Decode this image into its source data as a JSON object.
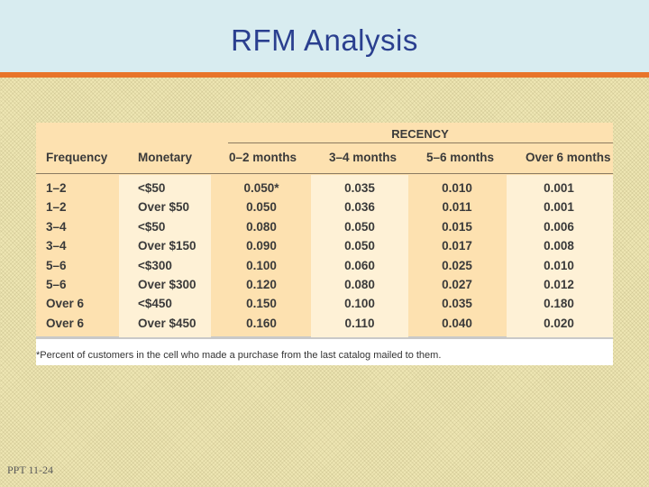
{
  "slide": {
    "title": "RFM Analysis",
    "page_number": "PPT 11-24"
  },
  "table": {
    "group_header": "RECENCY",
    "columns": [
      "Frequency",
      "Monetary",
      "0–2 months",
      "3–4 months",
      "5–6 months",
      "Over 6 months"
    ],
    "rows": [
      [
        "1–2",
        "<$50",
        "0.050*",
        "0.035",
        "0.010",
        "0.001"
      ],
      [
        "1–2",
        "Over $50",
        "0.050",
        "0.036",
        "0.011",
        "0.001"
      ],
      [
        "3–4",
        "<$50",
        "0.080",
        "0.050",
        "0.015",
        "0.006"
      ],
      [
        "3–4",
        "Over $150",
        "0.090",
        "0.050",
        "0.017",
        "0.008"
      ],
      [
        "5–6",
        "<$300",
        "0.100",
        "0.060",
        "0.025",
        "0.010"
      ],
      [
        "5–6",
        "Over $300",
        "0.120",
        "0.080",
        "0.027",
        "0.012"
      ],
      [
        "Over 6",
        "<$450",
        "0.150",
        "0.100",
        "0.035",
        "0.180"
      ],
      [
        "Over 6",
        "Over $450",
        "0.160",
        "0.110",
        "0.040",
        "0.020"
      ]
    ],
    "footnote": "*Percent of customers in the cell who made a purchase from the last catalog mailed to them."
  }
}
